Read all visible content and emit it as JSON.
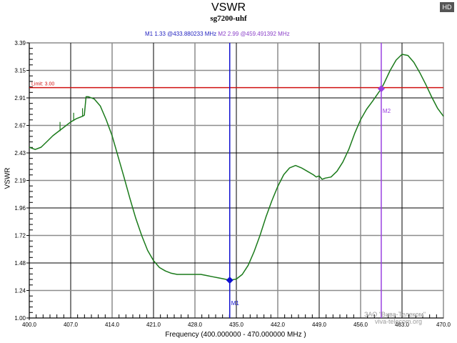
{
  "header": {
    "title": "VSWR",
    "subtitle": "sg7200-uhf",
    "hd_badge": "HD",
    "marker1_text": "M1   1.33 @433.880233 MHz",
    "marker2_text": "M2   2.99 @459.491392 MHz"
  },
  "axes": {
    "ylabel": "VSWR",
    "xlabel": "Frequency (400.000000 - 470.000000 MHz )"
  },
  "watermark": {
    "line1": "ЗАО \"Вива-Телеком\"",
    "line2": "viva-telecom.org"
  },
  "colors": {
    "trace": "#1a7a1a",
    "limit": "#d01010",
    "marker1": "#1010d0",
    "marker2": "#9a40e0",
    "grid_dark": "#000000",
    "grid_light": "#8c8c8c"
  },
  "chart_data": {
    "type": "line",
    "title": "VSWR",
    "subtitle": "sg7200-uhf",
    "xlabel": "Frequency (400.000000 - 470.000000 MHz )",
    "ylabel": "VSWR",
    "xlim": [
      400.0,
      470.0
    ],
    "ylim": [
      1.0,
      3.39
    ],
    "x_ticks": [
      "400.0",
      "407.0",
      "414.0",
      "421.0",
      "428.0",
      "435.0",
      "442.0",
      "449.0",
      "456.0",
      "463.0",
      "470.0"
    ],
    "y_ticks": [
      "1.00",
      "1.24",
      "1.48",
      "1.72",
      "1.96",
      "2.19",
      "2.43",
      "2.67",
      "2.91",
      "3.15",
      "3.39"
    ],
    "grid": true,
    "limit_line": {
      "label": "Limit: 3.00",
      "value": 3.0
    },
    "markers": [
      {
        "name": "M1",
        "value": 1.33,
        "freq_mhz": 433.880233
      },
      {
        "name": "M2",
        "value": 2.99,
        "freq_mhz": 459.491392
      }
    ],
    "series": [
      {
        "name": "VSWR",
        "x": [
          400.0,
          401.0,
          402.0,
          403.0,
          404.0,
          405.0,
          406.0,
          407.0,
          408.0,
          409.0,
          409.3,
          409.6,
          410.0,
          411.0,
          412.0,
          413.0,
          414.0,
          415.0,
          416.0,
          417.0,
          418.0,
          419.0,
          420.0,
          421.0,
          422.0,
          423.0,
          424.0,
          425.0,
          426.0,
          427.0,
          428.0,
          429.0,
          430.0,
          431.0,
          432.0,
          433.0,
          433.88,
          435.0,
          436.0,
          437.0,
          438.0,
          439.0,
          440.0,
          441.0,
          442.0,
          443.0,
          444.0,
          445.0,
          446.0,
          447.0,
          448.0,
          448.5,
          449.0,
          449.5,
          450.0,
          451.0,
          452.0,
          453.0,
          454.0,
          455.0,
          456.0,
          457.0,
          458.0,
          459.49,
          460.0,
          461.0,
          462.0,
          463.0,
          464.0,
          465.0,
          466.0,
          467.0,
          468.0,
          469.0,
          470.0
        ],
        "values": [
          2.48,
          2.46,
          2.48,
          2.53,
          2.58,
          2.62,
          2.66,
          2.7,
          2.73,
          2.75,
          2.76,
          2.92,
          2.92,
          2.9,
          2.84,
          2.72,
          2.58,
          2.4,
          2.22,
          2.04,
          1.87,
          1.72,
          1.59,
          1.5,
          1.44,
          1.41,
          1.39,
          1.38,
          1.38,
          1.38,
          1.38,
          1.38,
          1.37,
          1.36,
          1.35,
          1.34,
          1.33,
          1.34,
          1.38,
          1.46,
          1.58,
          1.72,
          1.88,
          2.02,
          2.14,
          2.24,
          2.3,
          2.32,
          2.3,
          2.27,
          2.24,
          2.22,
          2.23,
          2.2,
          2.21,
          2.22,
          2.27,
          2.35,
          2.46,
          2.6,
          2.72,
          2.81,
          2.88,
          2.99,
          3.04,
          3.15,
          3.24,
          3.29,
          3.28,
          3.22,
          3.13,
          3.03,
          2.92,
          2.82,
          2.75
        ]
      }
    ]
  }
}
